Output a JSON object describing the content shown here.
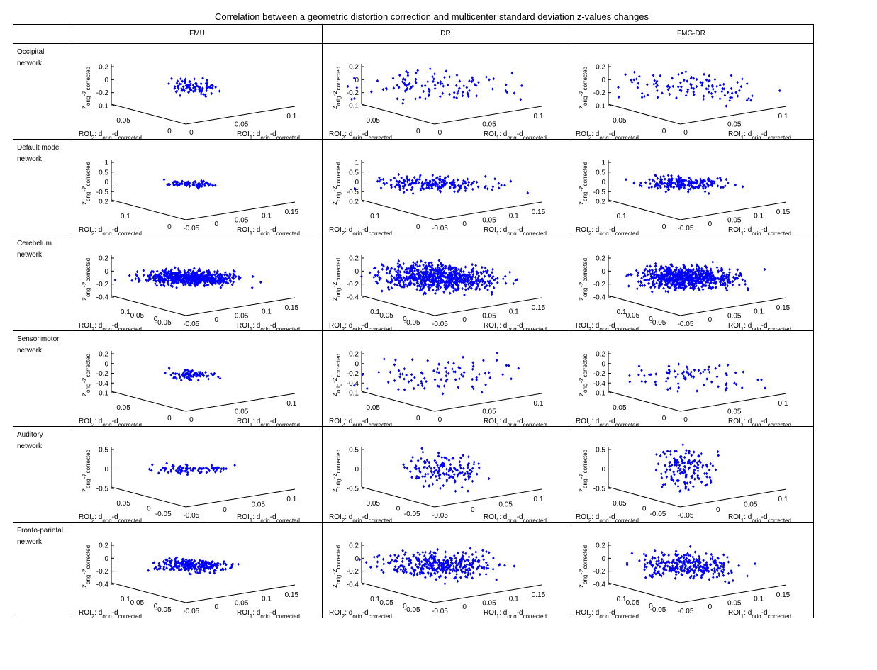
{
  "title": "Correlation between a geometric distortion correction and multicenter standard deviation z-values changes",
  "columns": [
    "FMU",
    "DR",
    "FMG-DR"
  ],
  "rows": [
    {
      "label_lines": [
        "Occipital",
        "network"
      ]
    },
    {
      "label_lines": [
        "Default mode",
        "network"
      ]
    },
    {
      "label_lines": [
        "Cerebelum",
        "network"
      ]
    },
    {
      "label_lines": [
        "Sensorimotor",
        "network"
      ]
    },
    {
      "label_lines": [
        "Auditory",
        "network"
      ]
    },
    {
      "label_lines": [
        "Fronto-parietal",
        "network"
      ]
    }
  ],
  "axis_text": {
    "z_label": "z",
    "z_sub_orig": "orig",
    "z_minus": "-z",
    "z_sub_corr": "corrected",
    "roi2_prefix": "ROI",
    "roi2_sub": "2",
    "roi1_prefix": "ROI",
    "roi1_sub": "1",
    "d_mid": ": d",
    "d_sub_orig": "orig",
    "d_minus": "-d",
    "d_sub_corr": "corrected"
  },
  "marker_color": "#0000ff",
  "chart_data": [
    {
      "row": "Occipital network",
      "type": "scatter3d",
      "ticks": {
        "z": [
          "0.2",
          "0",
          "-0.2",
          "0.1"
        ],
        "roi2": [
          "0.05",
          "0"
        ],
        "roi1": [
          "0",
          "0.05",
          "0.1"
        ]
      },
      "panels": [
        {
          "method": "FMU",
          "n": 90,
          "spread_roi1": 0.35,
          "spread_roi2": 0.35,
          "spread_z": 0.12
        },
        {
          "method": "DR",
          "n": 110,
          "spread_roi1": 1.0,
          "spread_roi2": 1.0,
          "spread_z": 0.25
        },
        {
          "method": "FMG-DR",
          "n": 110,
          "spread_roi1": 1.0,
          "spread_roi2": 1.0,
          "spread_z": 0.25
        }
      ]
    },
    {
      "row": "Default mode network",
      "type": "scatter3d",
      "ticks": {
        "z": [
          "1",
          "0.5",
          "0",
          "-0.5",
          "0.2"
        ],
        "roi2": [
          "0.1",
          "0"
        ],
        "roi1": [
          "-0.05",
          "0",
          "0.05",
          "0.1",
          "0.15"
        ]
      },
      "panels": [
        {
          "method": "FMU",
          "n": 80,
          "spread_roi1": 0.3,
          "spread_roi2": 0.3,
          "spread_z": 0.05
        },
        {
          "method": "DR",
          "n": 200,
          "spread_roi1": 0.85,
          "spread_roi2": 0.85,
          "spread_z": 0.12
        },
        {
          "method": "FMG-DR",
          "n": 200,
          "spread_roi1": 0.55,
          "spread_roi2": 0.55,
          "spread_z": 0.12
        }
      ]
    },
    {
      "row": "Cerebelum network",
      "type": "scatter3d",
      "ticks": {
        "z": [
          "0.2",
          "0",
          "-0.2",
          "-0.4"
        ],
        "roi2": [
          "0.1",
          "0.05",
          "0",
          "-0.05"
        ],
        "roi1": [
          "-0.05",
          "0",
          "0.05",
          "0.1",
          "0.15"
        ]
      },
      "panels": [
        {
          "method": "FMU",
          "n": 600,
          "spread_roi1": 0.6,
          "spread_roi2": 0.6,
          "spread_z": 0.12
        },
        {
          "method": "DR",
          "n": 700,
          "spread_roi1": 0.75,
          "spread_roi2": 0.75,
          "spread_z": 0.22
        },
        {
          "method": "FMG-DR",
          "n": 700,
          "spread_roi1": 0.65,
          "spread_roi2": 0.65,
          "spread_z": 0.2
        }
      ]
    },
    {
      "row": "Sensorimotor network",
      "type": "scatter3d",
      "ticks": {
        "z": [
          "0.2",
          "0",
          "-0.2",
          "-0.4",
          "0.1"
        ],
        "roi2": [
          "0.05",
          "0"
        ],
        "roi1": [
          "0",
          "0.05",
          "0.1"
        ]
      },
      "panels": [
        {
          "method": "FMU",
          "n": 80,
          "spread_roi1": 0.3,
          "spread_roi2": 0.3,
          "spread_z": 0.08
        },
        {
          "method": "DR",
          "n": 90,
          "spread_roi1": 1.0,
          "spread_roi2": 1.0,
          "spread_z": 0.3
        },
        {
          "method": "FMG-DR",
          "n": 80,
          "spread_roi1": 0.85,
          "spread_roi2": 0.85,
          "spread_z": 0.3
        }
      ]
    },
    {
      "row": "Auditory network",
      "type": "scatter3d",
      "ticks": {
        "z": [
          "0.5",
          "0",
          "-0.5"
        ],
        "roi2": [
          "0.05",
          "0",
          "-0.05"
        ],
        "roi1": [
          "-0.05",
          "0",
          "0.05",
          "0.1"
        ]
      },
      "panels": [
        {
          "method": "FMU",
          "n": 90,
          "spread_roi1": 0.45,
          "spread_roi2": 0.45,
          "spread_z": 0.08
        },
        {
          "method": "DR",
          "n": 150,
          "spread_roi1": 0.5,
          "spread_roi2": 0.5,
          "spread_z": 0.3
        },
        {
          "method": "FMG-DR",
          "n": 150,
          "spread_roi1": 0.35,
          "spread_roi2": 0.35,
          "spread_z": 0.35
        }
      ]
    },
    {
      "row": "Fronto-parietal network",
      "type": "scatter3d",
      "ticks": {
        "z": [
          "0.2",
          "0",
          "-0.2",
          "-0.4"
        ],
        "roi2": [
          "0.1",
          "0.05",
          "0",
          "-0.05"
        ],
        "roi1": [
          "-0.05",
          "0",
          "0.05",
          "0.1",
          "0.15"
        ]
      },
      "panels": [
        {
          "method": "FMU",
          "n": 250,
          "spread_roi1": 0.45,
          "spread_roi2": 0.45,
          "spread_z": 0.12
        },
        {
          "method": "DR",
          "n": 350,
          "spread_roi1": 0.75,
          "spread_roi2": 0.75,
          "spread_z": 0.25
        },
        {
          "method": "FMG-DR",
          "n": 300,
          "spread_roi1": 0.65,
          "spread_roi2": 0.65,
          "spread_z": 0.22
        }
      ]
    }
  ]
}
